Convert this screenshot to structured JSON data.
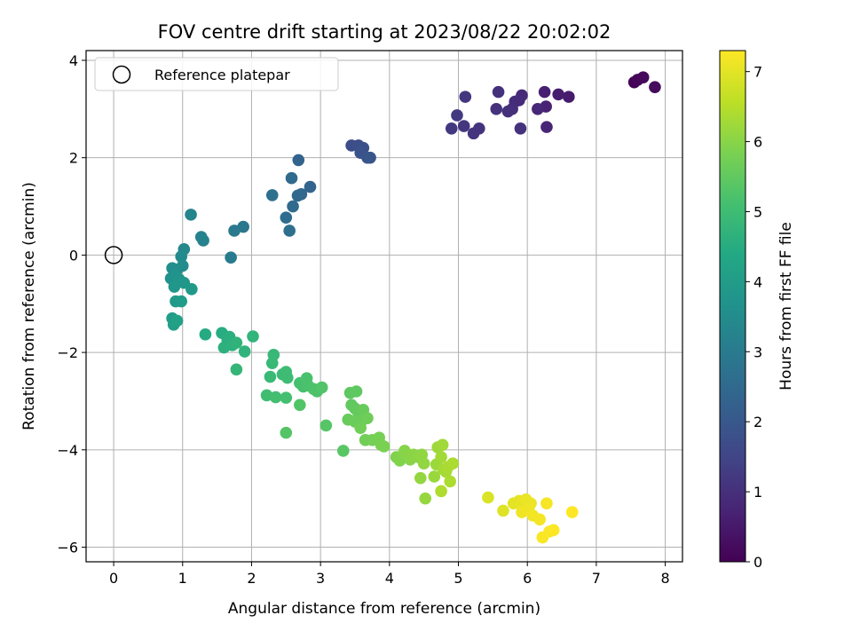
{
  "chart_data": {
    "type": "scatter",
    "title": "FOV centre drift starting at 2023/08/22 20:02:02",
    "xlabel": "Angular distance from reference (arcmin)",
    "ylabel": "Rotation from reference (arcmin)",
    "xlim": [
      -0.4,
      8.25
    ],
    "ylim": [
      -6.3,
      4.2
    ],
    "xticks": [
      0,
      1,
      2,
      3,
      4,
      5,
      6,
      7,
      8
    ],
    "yticks": [
      4,
      2,
      0,
      -2,
      -4,
      -6
    ],
    "grid": true,
    "legend": {
      "placement": "top-left",
      "entries": [
        {
          "label": "Reference platepar",
          "marker": "open-circle"
        }
      ]
    },
    "reference_point": {
      "x": 0,
      "y": 0
    },
    "colorbar": {
      "label": "Hours from first FF file",
      "colormap": "viridis",
      "range": [
        0,
        7.3
      ],
      "ticks": [
        0,
        1,
        2,
        3,
        4,
        5,
        6,
        7
      ]
    },
    "points": [
      {
        "x": 7.55,
        "y": 3.55,
        "t": 0.05
      },
      {
        "x": 7.6,
        "y": 3.6,
        "t": 0.1
      },
      {
        "x": 7.68,
        "y": 3.65,
        "t": 0.15
      },
      {
        "x": 7.85,
        "y": 3.45,
        "t": 0.2
      },
      {
        "x": 6.6,
        "y": 3.25,
        "t": 0.55
      },
      {
        "x": 6.45,
        "y": 3.3,
        "t": 0.6
      },
      {
        "x": 6.25,
        "y": 3.35,
        "t": 0.65
      },
      {
        "x": 6.27,
        "y": 3.05,
        "t": 0.7
      },
      {
        "x": 6.28,
        "y": 2.63,
        "t": 0.75
      },
      {
        "x": 6.15,
        "y": 3.0,
        "t": 0.8
      },
      {
        "x": 5.92,
        "y": 3.28,
        "t": 0.85
      },
      {
        "x": 5.88,
        "y": 3.18,
        "t": 0.9
      },
      {
        "x": 5.82,
        "y": 3.15,
        "t": 0.9
      },
      {
        "x": 5.78,
        "y": 3.0,
        "t": 0.95
      },
      {
        "x": 5.72,
        "y": 2.95,
        "t": 1.0
      },
      {
        "x": 5.58,
        "y": 3.35,
        "t": 1.0
      },
      {
        "x": 5.55,
        "y": 3.0,
        "t": 1.05
      },
      {
        "x": 5.9,
        "y": 2.6,
        "t": 1.05
      },
      {
        "x": 5.3,
        "y": 2.6,
        "t": 1.1
      },
      {
        "x": 5.22,
        "y": 2.5,
        "t": 1.1
      },
      {
        "x": 5.1,
        "y": 3.25,
        "t": 1.15
      },
      {
        "x": 5.08,
        "y": 2.65,
        "t": 1.15
      },
      {
        "x": 4.98,
        "y": 2.87,
        "t": 1.2
      },
      {
        "x": 4.9,
        "y": 2.6,
        "t": 1.2
      },
      {
        "x": 3.45,
        "y": 2.25,
        "t": 1.7
      },
      {
        "x": 3.55,
        "y": 2.25,
        "t": 1.75
      },
      {
        "x": 3.62,
        "y": 2.2,
        "t": 1.8
      },
      {
        "x": 3.58,
        "y": 2.1,
        "t": 1.85
      },
      {
        "x": 3.68,
        "y": 2.0,
        "t": 1.9
      },
      {
        "x": 3.72,
        "y": 2.0,
        "t": 1.95
      },
      {
        "x": 2.68,
        "y": 1.95,
        "t": 2.3
      },
      {
        "x": 2.85,
        "y": 1.4,
        "t": 2.35
      },
      {
        "x": 2.72,
        "y": 1.25,
        "t": 2.4
      },
      {
        "x": 2.67,
        "y": 1.22,
        "t": 2.45
      },
      {
        "x": 2.58,
        "y": 1.58,
        "t": 2.5
      },
      {
        "x": 2.6,
        "y": 1.0,
        "t": 2.55
      },
      {
        "x": 2.5,
        "y": 0.77,
        "t": 2.6
      },
      {
        "x": 2.55,
        "y": 0.5,
        "t": 2.65
      },
      {
        "x": 2.3,
        "y": 1.23,
        "t": 2.7
      },
      {
        "x": 1.88,
        "y": 0.58,
        "t": 2.9
      },
      {
        "x": 1.75,
        "y": 0.5,
        "t": 2.95
      },
      {
        "x": 1.7,
        "y": -0.05,
        "t": 3.0
      },
      {
        "x": 1.3,
        "y": 0.3,
        "t": 3.2
      },
      {
        "x": 1.27,
        "y": 0.37,
        "t": 3.25
      },
      {
        "x": 1.12,
        "y": 0.83,
        "t": 3.3
      },
      {
        "x": 1.02,
        "y": 0.12,
        "t": 3.4
      },
      {
        "x": 0.98,
        "y": -0.03,
        "t": 3.45
      },
      {
        "x": 1.0,
        "y": -0.22,
        "t": 3.5
      },
      {
        "x": 0.92,
        "y": -0.3,
        "t": 3.55
      },
      {
        "x": 0.85,
        "y": -0.27,
        "t": 3.6
      },
      {
        "x": 0.83,
        "y": -0.48,
        "t": 3.65
      },
      {
        "x": 0.9,
        "y": -0.42,
        "t": 3.7
      },
      {
        "x": 0.95,
        "y": -0.5,
        "t": 3.75
      },
      {
        "x": 1.02,
        "y": -0.57,
        "t": 3.8
      },
      {
        "x": 0.88,
        "y": -0.65,
        "t": 3.85
      },
      {
        "x": 1.13,
        "y": -0.7,
        "t": 3.9
      },
      {
        "x": 0.9,
        "y": -0.95,
        "t": 3.95
      },
      {
        "x": 0.98,
        "y": -0.95,
        "t": 4.0
      },
      {
        "x": 0.85,
        "y": -1.3,
        "t": 4.05
      },
      {
        "x": 0.87,
        "y": -1.43,
        "t": 4.1
      },
      {
        "x": 0.92,
        "y": -1.35,
        "t": 4.15
      },
      {
        "x": 1.33,
        "y": -1.63,
        "t": 4.45
      },
      {
        "x": 1.57,
        "y": -1.6,
        "t": 4.5
      },
      {
        "x": 1.65,
        "y": -1.75,
        "t": 4.55
      },
      {
        "x": 1.68,
        "y": -1.68,
        "t": 4.6
      },
      {
        "x": 1.6,
        "y": -1.9,
        "t": 4.62
      },
      {
        "x": 1.72,
        "y": -1.85,
        "t": 4.65
      },
      {
        "x": 1.78,
        "y": -1.8,
        "t": 4.7
      },
      {
        "x": 1.9,
        "y": -1.98,
        "t": 4.72
      },
      {
        "x": 2.02,
        "y": -1.67,
        "t": 4.75
      },
      {
        "x": 1.78,
        "y": -2.35,
        "t": 4.8
      },
      {
        "x": 2.32,
        "y": -2.05,
        "t": 4.85
      },
      {
        "x": 2.3,
        "y": -2.22,
        "t": 4.88
      },
      {
        "x": 2.27,
        "y": -2.5,
        "t": 4.9
      },
      {
        "x": 2.45,
        "y": -2.45,
        "t": 4.95
      },
      {
        "x": 2.5,
        "y": -2.4,
        "t": 4.98
      },
      {
        "x": 2.52,
        "y": -2.52,
        "t": 5.0
      },
      {
        "x": 2.22,
        "y": -2.88,
        "t": 5.05
      },
      {
        "x": 2.35,
        "y": -2.92,
        "t": 5.08
      },
      {
        "x": 2.5,
        "y": -2.93,
        "t": 5.1
      },
      {
        "x": 2.7,
        "y": -2.63,
        "t": 5.12
      },
      {
        "x": 2.75,
        "y": -2.7,
        "t": 5.15
      },
      {
        "x": 2.8,
        "y": -2.53,
        "t": 5.18
      },
      {
        "x": 2.82,
        "y": -2.68,
        "t": 5.2
      },
      {
        "x": 2.9,
        "y": -2.75,
        "t": 5.22
      },
      {
        "x": 2.95,
        "y": -2.8,
        "t": 5.25
      },
      {
        "x": 3.02,
        "y": -2.72,
        "t": 5.28
      },
      {
        "x": 2.7,
        "y": -3.08,
        "t": 5.3
      },
      {
        "x": 2.5,
        "y": -3.65,
        "t": 5.32
      },
      {
        "x": 3.08,
        "y": -3.5,
        "t": 5.35
      },
      {
        "x": 3.33,
        "y": -4.02,
        "t": 5.4
      },
      {
        "x": 3.43,
        "y": -2.83,
        "t": 5.45
      },
      {
        "x": 3.52,
        "y": -2.8,
        "t": 5.48
      },
      {
        "x": 3.45,
        "y": -3.08,
        "t": 5.5
      },
      {
        "x": 3.5,
        "y": -3.15,
        "t": 5.52
      },
      {
        "x": 3.55,
        "y": -3.25,
        "t": 5.55
      },
      {
        "x": 3.62,
        "y": -3.18,
        "t": 5.58
      },
      {
        "x": 3.4,
        "y": -3.38,
        "t": 5.6
      },
      {
        "x": 3.5,
        "y": -3.42,
        "t": 5.62
      },
      {
        "x": 3.6,
        "y": -3.4,
        "t": 5.65
      },
      {
        "x": 3.68,
        "y": -3.35,
        "t": 5.68
      },
      {
        "x": 3.58,
        "y": -3.55,
        "t": 5.7
      },
      {
        "x": 3.65,
        "y": -3.8,
        "t": 5.72
      },
      {
        "x": 3.75,
        "y": -3.8,
        "t": 5.75
      },
      {
        "x": 3.85,
        "y": -3.75,
        "t": 5.78
      },
      {
        "x": 3.88,
        "y": -3.9,
        "t": 5.8
      },
      {
        "x": 3.92,
        "y": -3.93,
        "t": 5.82
      },
      {
        "x": 4.1,
        "y": -4.15,
        "t": 5.9
      },
      {
        "x": 4.15,
        "y": -4.22,
        "t": 5.92
      },
      {
        "x": 4.2,
        "y": -4.1,
        "t": 5.95
      },
      {
        "x": 4.22,
        "y": -4.02,
        "t": 5.98
      },
      {
        "x": 4.3,
        "y": -4.2,
        "t": 6.0
      },
      {
        "x": 4.35,
        "y": -4.1,
        "t": 6.02
      },
      {
        "x": 4.42,
        "y": -4.15,
        "t": 6.05
      },
      {
        "x": 4.47,
        "y": -4.1,
        "t": 6.08
      },
      {
        "x": 4.5,
        "y": -4.28,
        "t": 6.1
      },
      {
        "x": 4.45,
        "y": -4.58,
        "t": 6.12
      },
      {
        "x": 4.52,
        "y": -5.0,
        "t": 6.15
      },
      {
        "x": 4.65,
        "y": -4.55,
        "t": 6.18
      },
      {
        "x": 4.68,
        "y": -4.3,
        "t": 6.2
      },
      {
        "x": 4.7,
        "y": -3.95,
        "t": 6.22
      },
      {
        "x": 4.77,
        "y": -3.9,
        "t": 6.25
      },
      {
        "x": 4.75,
        "y": -4.15,
        "t": 6.28
      },
      {
        "x": 4.78,
        "y": -4.4,
        "t": 6.3
      },
      {
        "x": 4.82,
        "y": -4.45,
        "t": 6.32
      },
      {
        "x": 4.85,
        "y": -4.35,
        "t": 6.35
      },
      {
        "x": 4.92,
        "y": -4.28,
        "t": 6.38
      },
      {
        "x": 4.88,
        "y": -4.65,
        "t": 6.4
      },
      {
        "x": 4.75,
        "y": -4.85,
        "t": 6.42
      },
      {
        "x": 5.43,
        "y": -4.98,
        "t": 6.9
      },
      {
        "x": 5.65,
        "y": -5.25,
        "t": 6.95
      },
      {
        "x": 5.8,
        "y": -5.1,
        "t": 7.0
      },
      {
        "x": 5.88,
        "y": -5.05,
        "t": 7.02
      },
      {
        "x": 5.92,
        "y": -5.12,
        "t": 7.05
      },
      {
        "x": 5.98,
        "y": -5.02,
        "t": 7.08
      },
      {
        "x": 6.05,
        "y": -5.1,
        "t": 7.1
      },
      {
        "x": 6.02,
        "y": -5.2,
        "t": 7.12
      },
      {
        "x": 5.92,
        "y": -5.28,
        "t": 7.15
      },
      {
        "x": 6.08,
        "y": -5.35,
        "t": 7.18
      },
      {
        "x": 6.18,
        "y": -5.43,
        "t": 7.2
      },
      {
        "x": 6.28,
        "y": -5.1,
        "t": 7.22
      },
      {
        "x": 6.22,
        "y": -5.8,
        "t": 7.25
      },
      {
        "x": 6.32,
        "y": -5.68,
        "t": 7.27
      },
      {
        "x": 6.38,
        "y": -5.65,
        "t": 7.28
      },
      {
        "x": 6.65,
        "y": -5.28,
        "t": 7.3
      }
    ]
  }
}
